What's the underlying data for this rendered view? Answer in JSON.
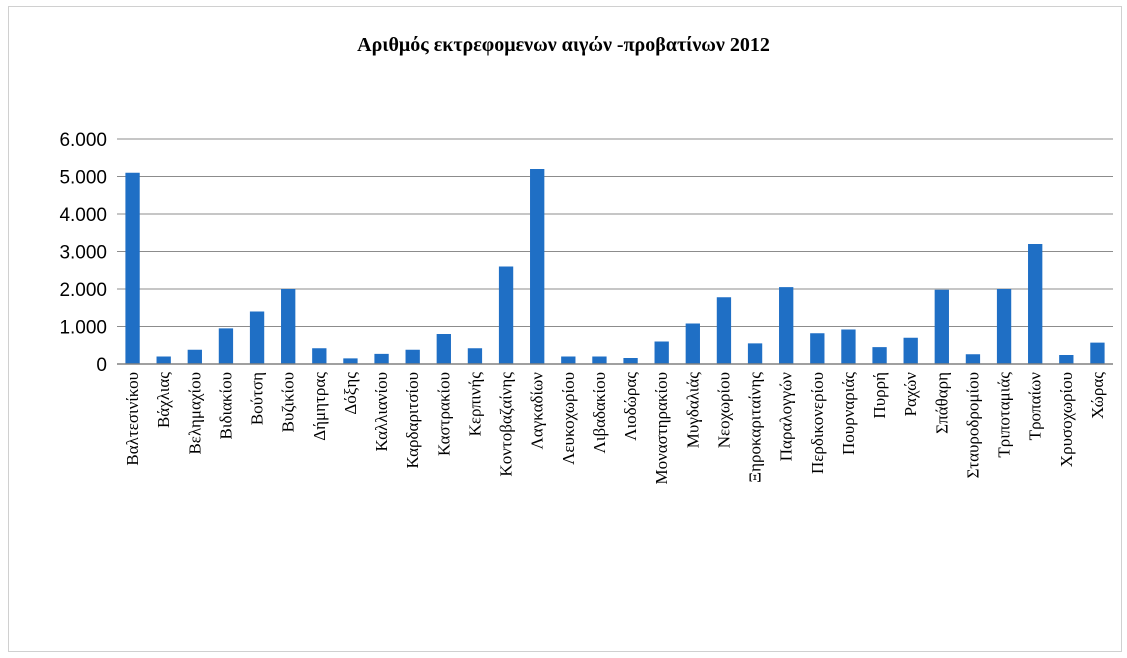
{
  "chart_data": {
    "type": "bar",
    "title": "Αριθμός εκτρεφομενων αιγών -προβατίνων 2012",
    "xlabel": "",
    "ylabel": "",
    "ylim": [
      0,
      6000
    ],
    "yticks": [
      0,
      1000,
      2000,
      3000,
      4000,
      5000,
      6000
    ],
    "ytick_labels": [
      "0",
      "1.000",
      "2.000",
      "3.000",
      "4.000",
      "5.000",
      "6.000"
    ],
    "grid": true,
    "legend": "none",
    "bar_color": "#1f6fc5",
    "categories": [
      "Βαλτεσινίκου",
      "Βάχλιας",
      "Βελημαχίου",
      "Βιδιακίου",
      "Βούτση",
      "Βυζικίου",
      "Δήμητρας",
      "Δόξης",
      "Καλλιανίου",
      "Καρδαριτσίου",
      "Καστρακίου",
      "Κερπινής",
      "Κοντοβαζαίνης",
      "Λαγκαδίων",
      "Λευκοχωρίου",
      "Λιβαδακίου",
      "Λιοδώρας",
      "Μοναστηρακίου",
      "Μυγδαλιάς",
      "Νεοχωρίου",
      "Ξηροκαριταίνης",
      "Παραλογγών",
      "Περδικονερίου",
      "Πουρναριάς",
      "Πυρρή",
      "Ραχών",
      "Σπάθαρη",
      "Σταυροδρομίου",
      "Τριποταμιάς",
      "Τροπαίων",
      "Χρυσοχωρίου",
      "Χώρας"
    ],
    "values": [
      5100,
      200,
      380,
      950,
      1400,
      2000,
      420,
      150,
      270,
      380,
      800,
      420,
      2600,
      5200,
      200,
      200,
      160,
      600,
      1080,
      1780,
      550,
      2050,
      820,
      920,
      450,
      700,
      1980,
      260,
      2000,
      3200,
      240,
      570
    ]
  }
}
